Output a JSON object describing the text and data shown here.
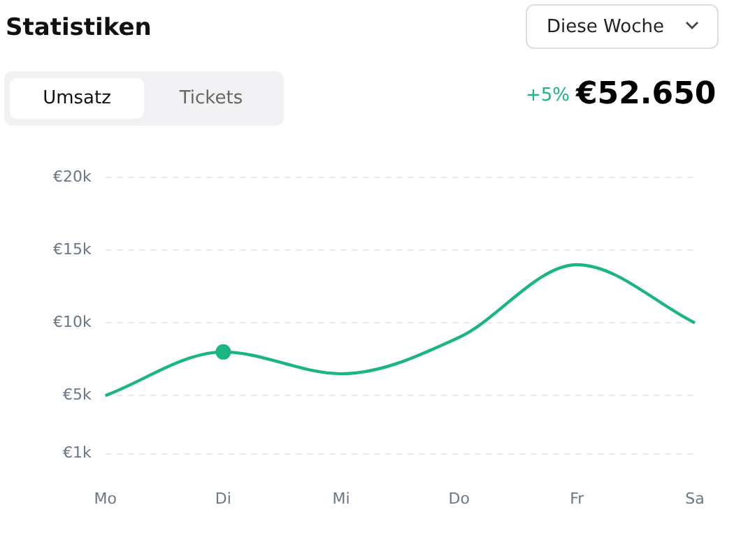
{
  "chart_data": {
    "type": "line",
    "title": "Statistiken",
    "annotations": [
      "Diese Woche",
      "Umsatz",
      "Tickets",
      "+5%",
      "€52.650"
    ],
    "categories": [
      "Mo",
      "Di",
      "Mi",
      "Do",
      "Fr",
      "Sa"
    ],
    "series": [
      {
        "color": "#1bb584",
        "values": [
          5000,
          8000,
          6500,
          9000,
          14000,
          10000
        ],
        "marker": "none"
      },
      {
        "type": "scatter",
        "color": "#1bb584",
        "x": [
          "Di"
        ],
        "values": [
          8000
        ],
        "marker": "circle"
      }
    ],
    "ylim": [
      1000,
      20000
    ],
    "yticks": [
      {
        "value": 1000,
        "label": "€1k"
      },
      {
        "value": 5000,
        "label": "€5k"
      },
      {
        "value": 10000,
        "label": "€10k"
      },
      {
        "value": 15000,
        "label": "€15k"
      },
      {
        "value": 20000,
        "label": "€20k"
      }
    ],
    "grid": "y",
    "legend": false
  }
}
